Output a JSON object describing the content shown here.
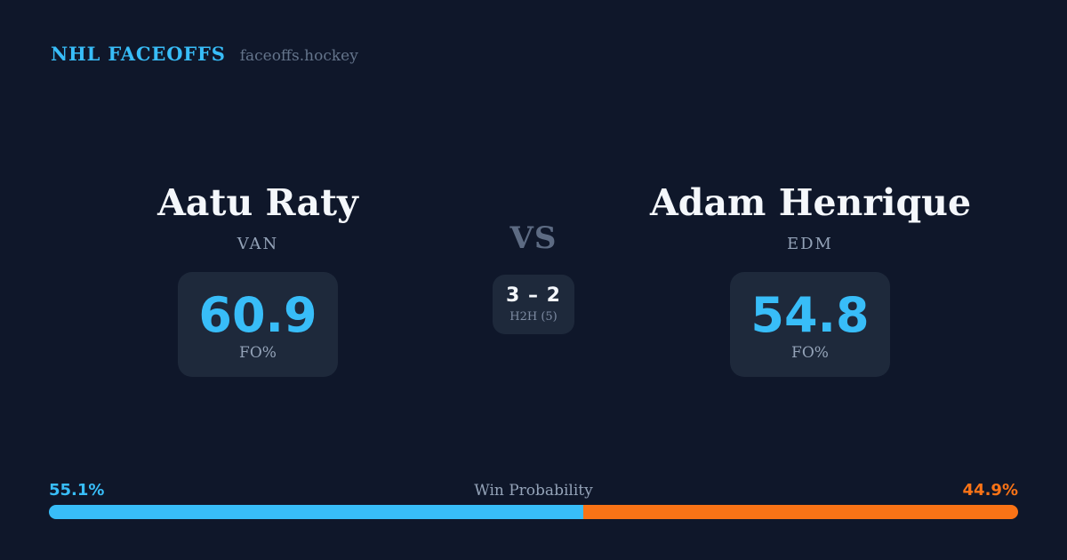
{
  "header": {
    "brand": "NHL FACEOFFS",
    "site": "faceoffs.hockey"
  },
  "matchup": {
    "vs_label": "VS",
    "h2h": {
      "score": "3 – 2",
      "label": "H2H (5)"
    },
    "players": [
      {
        "name": "Aatu Raty",
        "team": "VAN",
        "fo_pct": "60.9",
        "stat_label": "FO%"
      },
      {
        "name": "Adam Henrique",
        "team": "EDM",
        "fo_pct": "54.8",
        "stat_label": "FO%"
      }
    ]
  },
  "win_probability": {
    "title": "Win Probability",
    "left_pct_label": "55.1%",
    "right_pct_label": "44.9%",
    "left_value": 55.1,
    "right_value": 44.9
  },
  "colors": {
    "background": "#0f172a",
    "card": "#1e293b",
    "accent_blue": "#38bdf8",
    "accent_orange": "#f97316"
  }
}
